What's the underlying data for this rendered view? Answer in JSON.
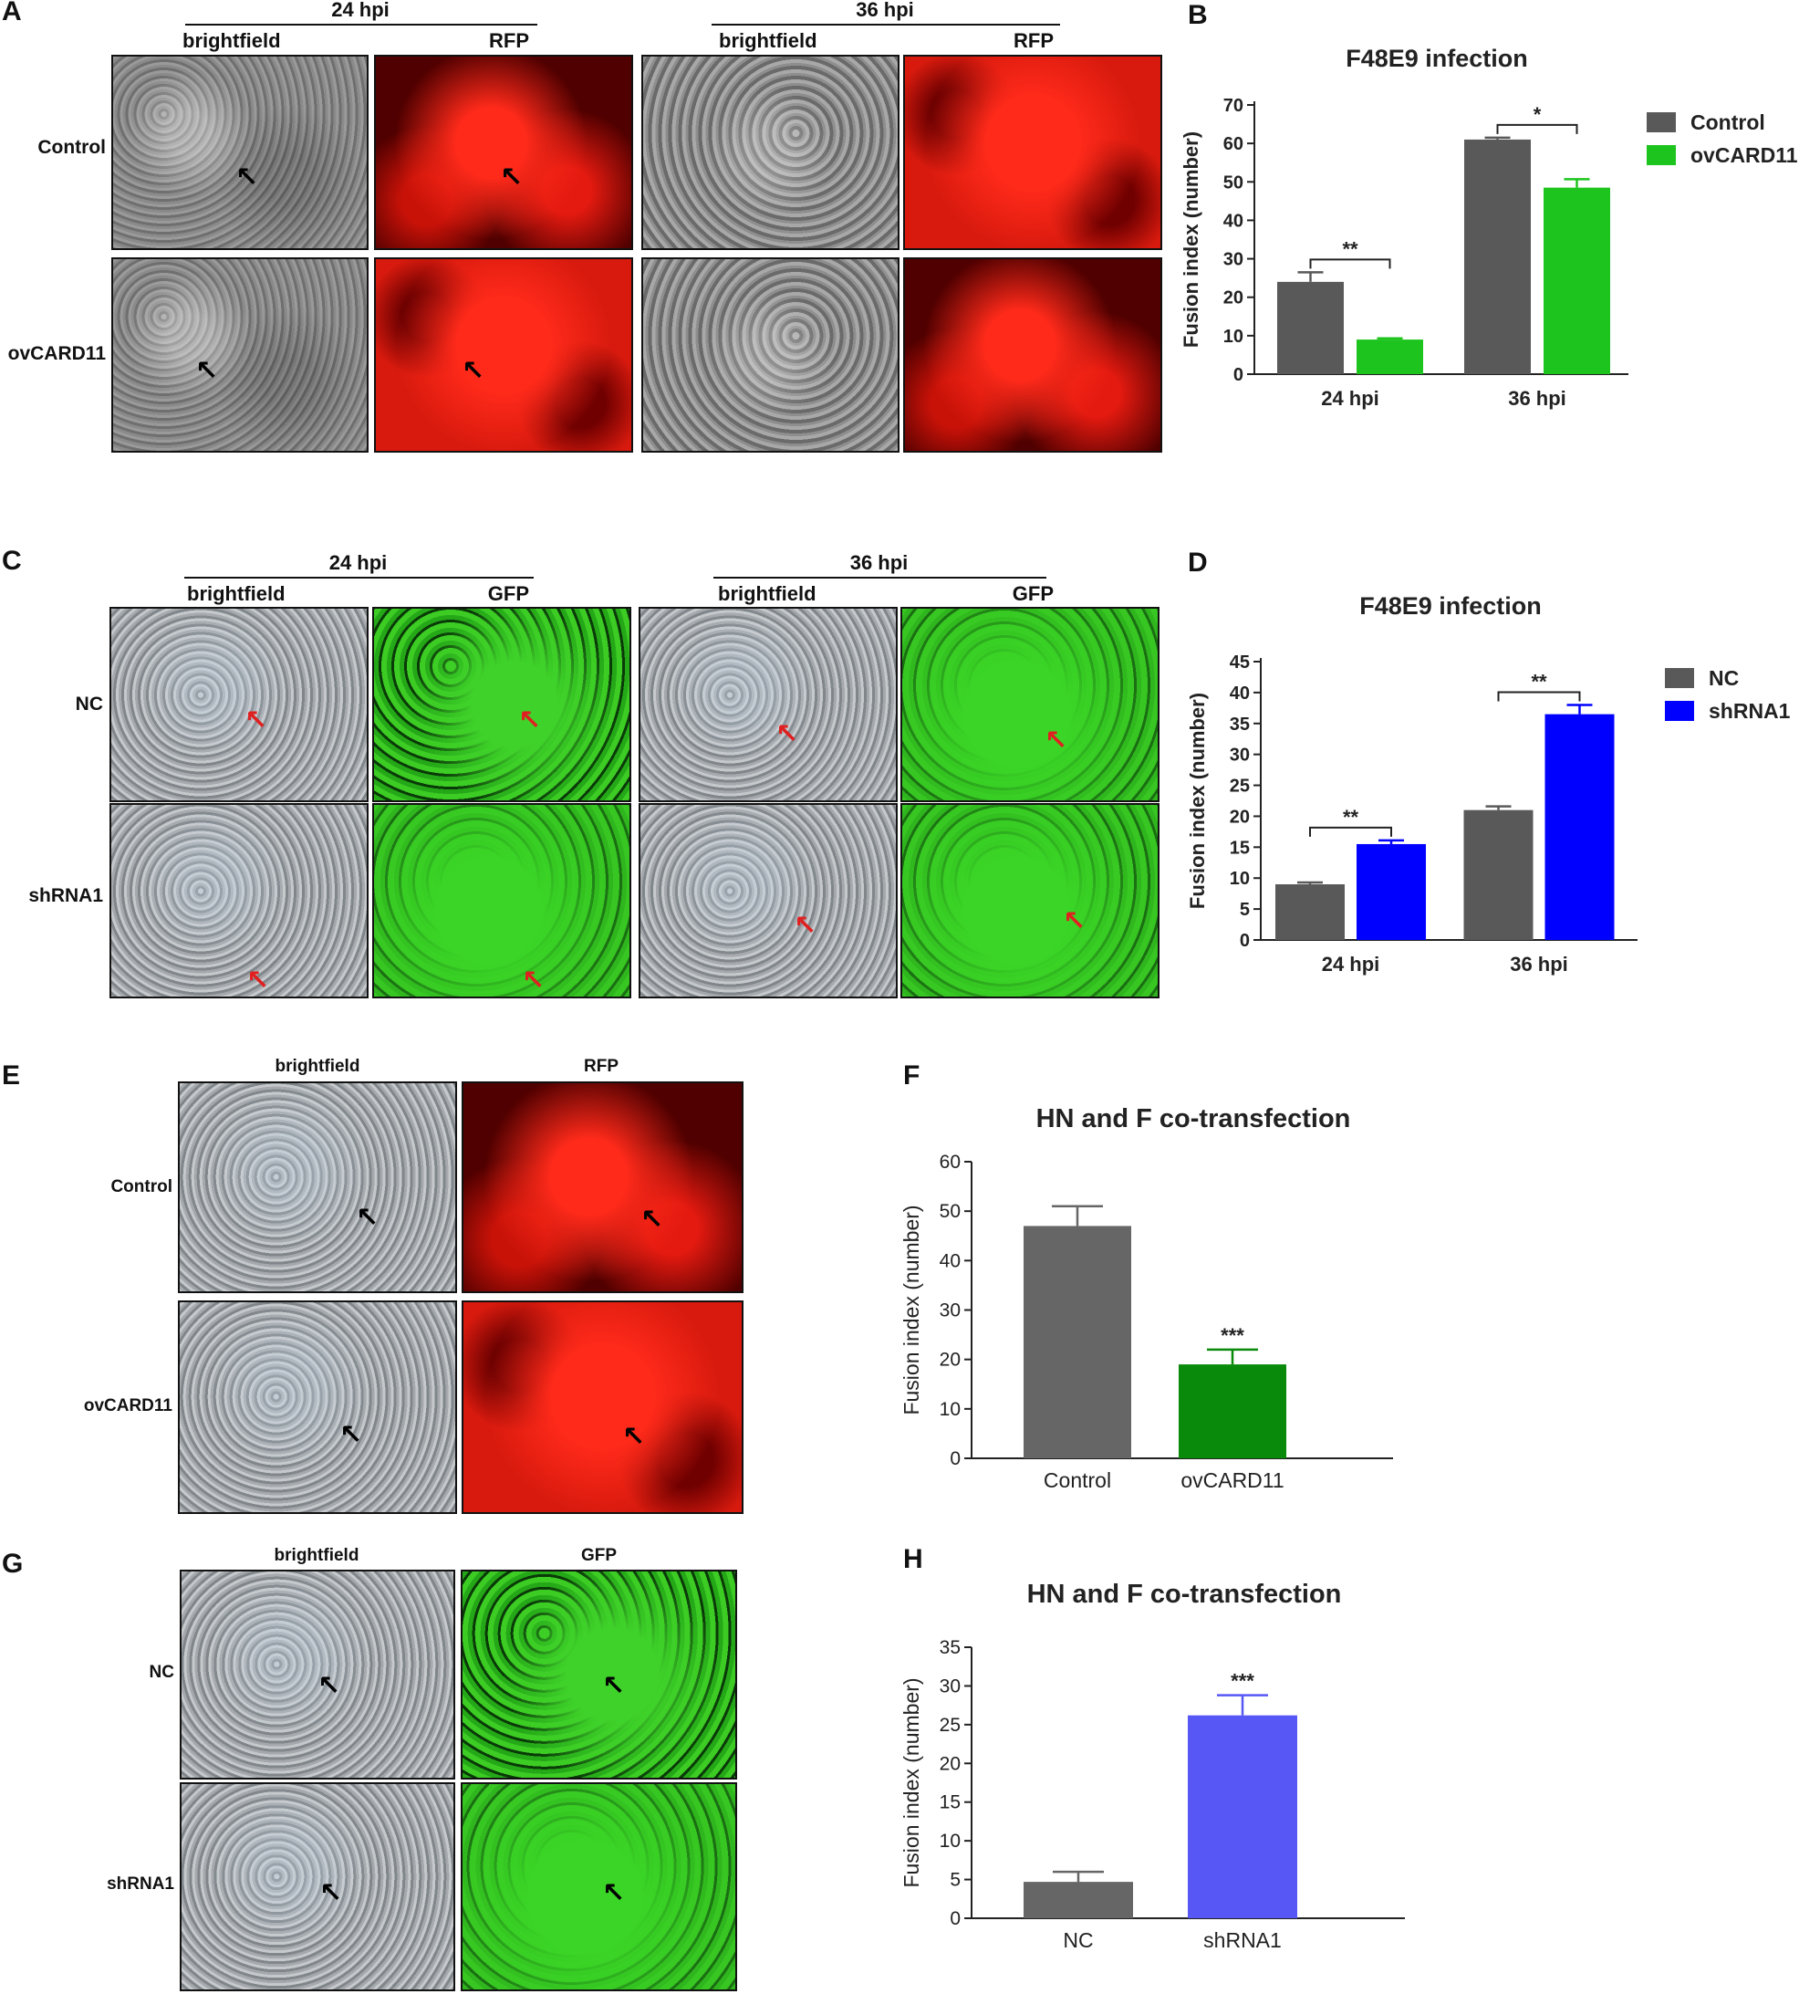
{
  "panels": {
    "A": {
      "label": "A",
      "groups": [
        {
          "title": "24 hpi",
          "sub": [
            "brightfield",
            "RFP"
          ]
        },
        {
          "title": "36 hpi",
          "sub": [
            "brightfield",
            "RFP"
          ]
        }
      ],
      "rows": [
        "Control",
        "ovCARD11"
      ]
    },
    "C": {
      "label": "C",
      "groups": [
        {
          "title": "24 hpi",
          "sub": [
            "brightfield",
            "GFP"
          ]
        },
        {
          "title": "36 hpi",
          "sub": [
            "brightfield",
            "GFP"
          ]
        }
      ],
      "rows": [
        "NC",
        "shRNA1"
      ]
    },
    "E": {
      "label": "E",
      "sub": [
        "brightfield",
        "RFP"
      ],
      "rows": [
        "Control",
        "ovCARD11"
      ]
    },
    "G": {
      "label": "G",
      "sub": [
        "brightfield",
        "GFP"
      ],
      "rows": [
        "NC",
        "shRNA1"
      ]
    }
  },
  "chart_data": [
    {
      "id": "B",
      "type": "bar",
      "title": "F48E9 infection",
      "ylabel": "Fusion index (number)",
      "xlabel": "",
      "categories": [
        "24 hpi",
        "36 hpi"
      ],
      "series": [
        {
          "name": "Control",
          "values": [
            24,
            61
          ],
          "errors": [
            2.5,
            0.5
          ],
          "color": "#595959"
        },
        {
          "name": "ovCARD11",
          "values": [
            9,
            48.5
          ],
          "errors": [
            0.3,
            2.2
          ],
          "color": "#1ec41e"
        }
      ],
      "ylim": [
        0,
        70
      ],
      "yticks": [
        0,
        10,
        20,
        30,
        40,
        50,
        60,
        70
      ],
      "significance": [
        "**",
        "*"
      ],
      "legend": "top-right"
    },
    {
      "id": "D",
      "type": "bar",
      "title": "F48E9 infection",
      "ylabel": "Fusion index (number)",
      "xlabel": "",
      "categories": [
        "24 hpi",
        "36 hpi"
      ],
      "series": [
        {
          "name": "NC",
          "values": [
            9,
            21
          ],
          "errors": [
            0.3,
            0.6
          ],
          "color": "#595959"
        },
        {
          "name": "shRNA1",
          "values": [
            15.5,
            36.5
          ],
          "errors": [
            0.6,
            1.5
          ],
          "color": "#0000ff"
        }
      ],
      "ylim": [
        0,
        45
      ],
      "yticks": [
        0,
        5,
        10,
        15,
        20,
        25,
        30,
        35,
        40,
        45
      ],
      "significance": [
        "**",
        "**"
      ],
      "legend": "top-right"
    },
    {
      "id": "F",
      "type": "bar",
      "title": "HN and F co-transfection",
      "ylabel": "Fusion index (number)",
      "xlabel": "",
      "categories": [
        "Control",
        "ovCARD11"
      ],
      "values": [
        47,
        19
      ],
      "errors": [
        4,
        3
      ],
      "colors": [
        "#666666",
        "#0a8a0a"
      ],
      "ylim": [
        0,
        60
      ],
      "yticks": [
        0,
        10,
        20,
        30,
        40,
        50,
        60
      ],
      "significance": [
        "",
        "***"
      ]
    },
    {
      "id": "H",
      "type": "bar",
      "title": "HN and F co-transfection",
      "ylabel": "Fusion index (number)",
      "xlabel": "",
      "categories": [
        "NC",
        "shRNA1"
      ],
      "values": [
        4.7,
        26.2
      ],
      "errors": [
        1.3,
        2.6
      ],
      "colors": [
        "#666666",
        "#5757f5"
      ],
      "ylim": [
        0,
        35
      ],
      "yticks": [
        0,
        5,
        10,
        15,
        20,
        25,
        30,
        35
      ],
      "significance": [
        "",
        "***"
      ]
    }
  ],
  "chart_labels": {
    "B": "B",
    "D": "D",
    "F": "F",
    "H": "H"
  }
}
